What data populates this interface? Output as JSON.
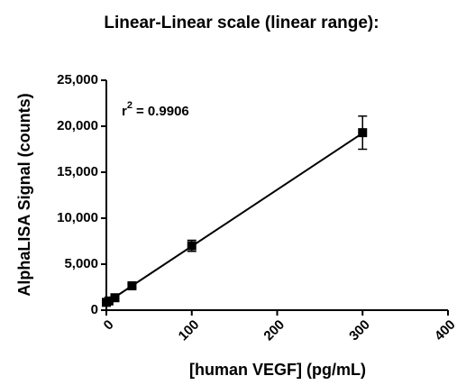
{
  "chart_data": {
    "type": "scatter",
    "title": "Linear-Linear scale (linear range):",
    "x_label": "[human VEGF] (pg/mL)",
    "y_label": "AlphaLISA Signal (counts)",
    "annotation": {
      "base": "r",
      "superscript": "2",
      "text": "= 0.9906"
    },
    "x": [
      0,
      3,
      10,
      30,
      100,
      300
    ],
    "values": [
      850,
      1000,
      1350,
      2650,
      7000,
      19300
    ],
    "errors": [
      100,
      100,
      150,
      200,
      600,
      1800
    ],
    "fit_line": {
      "x": [
        0,
        300
      ],
      "values": [
        800,
        19250
      ]
    },
    "color": "#000000",
    "xlim": [
      0,
      400
    ],
    "xticks": [
      0,
      100,
      200,
      300,
      400
    ],
    "ylim": [
      0,
      25000
    ],
    "yticks": [
      0,
      {
        "value": 5000,
        "label": "5,000"
      },
      {
        "value": 10000,
        "label": "10,000"
      },
      {
        "value": 15000,
        "label": "15,000"
      },
      {
        "value": 20000,
        "label": "20,000"
      },
      {
        "value": 25000,
        "label": "25,000"
      }
    ]
  }
}
